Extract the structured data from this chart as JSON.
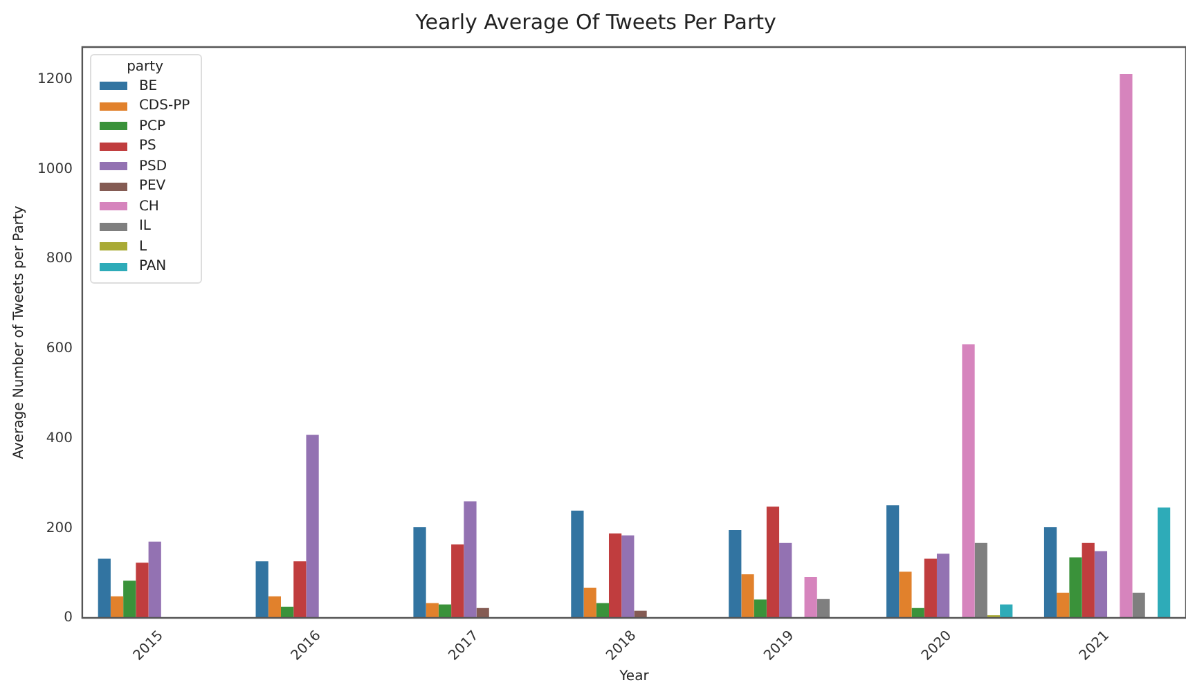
{
  "chart_data": {
    "type": "bar",
    "title": "Yearly Average Of Tweets Per Party",
    "xlabel": "Year",
    "ylabel": "Average Number of Tweets per Party",
    "legend_title": "party",
    "legend": "top left",
    "grid": false,
    "categories": [
      "2015",
      "2016",
      "2017",
      "2018",
      "2019",
      "2020",
      "2021"
    ],
    "ylim": [
      0,
      1272
    ],
    "yticks": [
      0,
      200,
      400,
      600,
      800,
      1000,
      1200
    ],
    "series": [
      {
        "name": "BE",
        "color": "#3274a1",
        "values": [
          132,
          126,
          202,
          239,
          196,
          251,
          202
        ]
      },
      {
        "name": "CDS-PP",
        "color": "#e1812c",
        "values": [
          48,
          48,
          33,
          67,
          97,
          103,
          56
        ]
      },
      {
        "name": "PCP",
        "color": "#3a923a",
        "values": [
          83,
          25,
          30,
          33,
          41,
          22,
          135
        ]
      },
      {
        "name": "PS",
        "color": "#c03d3e",
        "values": [
          123,
          126,
          164,
          188,
          248,
          132,
          167
        ]
      },
      {
        "name": "PSD",
        "color": "#9372b2",
        "values": [
          170,
          408,
          260,
          184,
          167,
          143,
          149
        ]
      },
      {
        "name": "PEV",
        "color": "#845b53",
        "values": [
          null,
          null,
          22,
          16,
          null,
          null,
          null
        ]
      },
      {
        "name": "CH",
        "color": "#d684bd",
        "values": [
          null,
          null,
          null,
          null,
          91,
          610,
          1212
        ]
      },
      {
        "name": "IL",
        "color": "#7f7f7f",
        "values": [
          null,
          null,
          null,
          null,
          42,
          167,
          56
        ]
      },
      {
        "name": "L",
        "color": "#a9aa35",
        "values": [
          null,
          null,
          null,
          null,
          null,
          6,
          null
        ]
      },
      {
        "name": "PAN",
        "color": "#2eabb8",
        "values": [
          null,
          null,
          null,
          null,
          null,
          30,
          246
        ]
      }
    ]
  }
}
